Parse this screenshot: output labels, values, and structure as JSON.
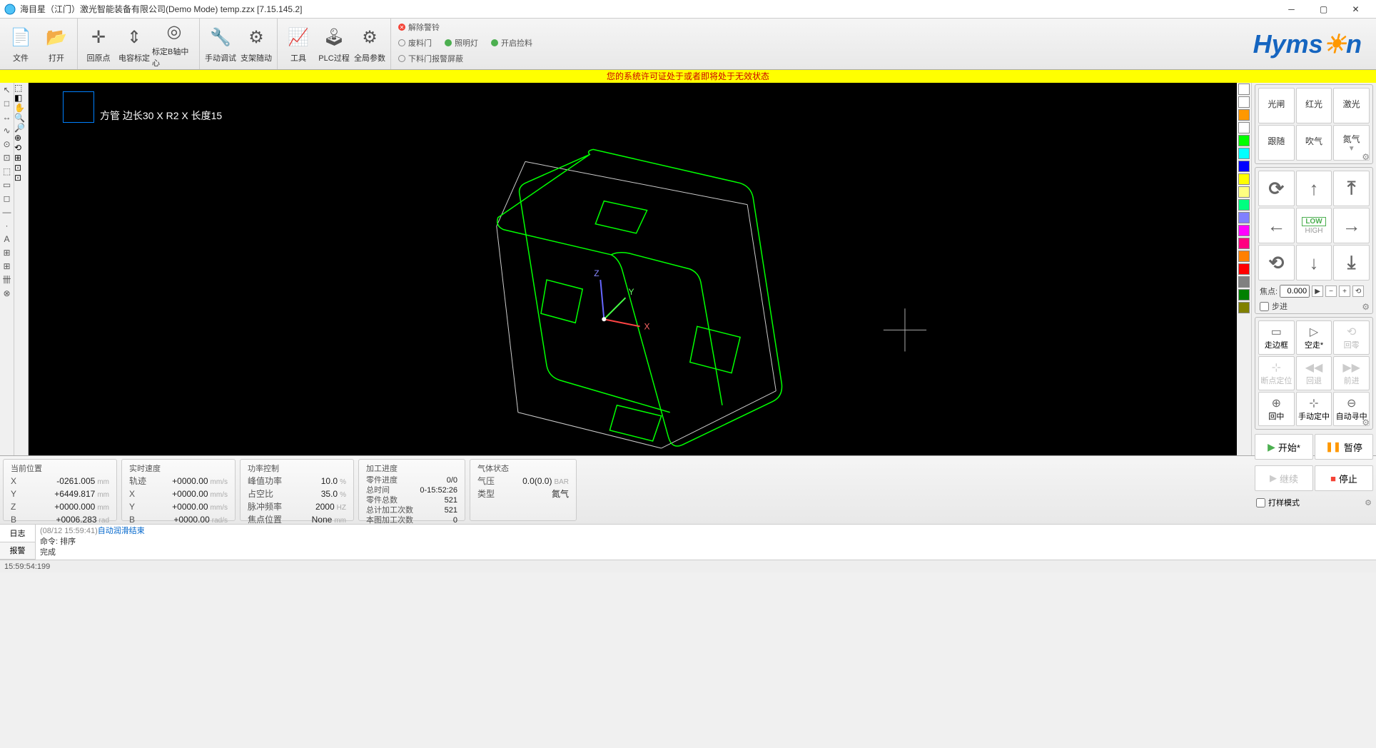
{
  "window": {
    "title": "海目星（江门）激光智能装备有限公司(Demo Mode) temp.zzx   [7.15.145.2]"
  },
  "toolbar": {
    "file": "文件",
    "open": "打开",
    "origin": "回原点",
    "cap": "电容标定",
    "baxis": "标定B轴中心",
    "manual": "手动调试",
    "support": "支架随动",
    "tool": "工具",
    "plc": "PLC过程",
    "global": "全局参数"
  },
  "checks": {
    "alarm": "解除警铃",
    "waste": "废料门",
    "light": "照明灯",
    "autoload": "开启捡料",
    "unload": "下料门报警屏蔽"
  },
  "warn": "您的系统许可证处于或者即将处于无效状态",
  "canvas": {
    "label": "方管 边长30 X R2 X 长度15"
  },
  "rpanel": {
    "r1": {
      "a": "光闸",
      "b": "红光",
      "c": "激光"
    },
    "r2": {
      "a": "跟随",
      "b": "吹气",
      "c": "氮气"
    },
    "focus_lbl": "焦点:",
    "focus_val": "0.000",
    "step_lbl": "步进",
    "low": "LOW",
    "high": "HIGH",
    "frame": "走边框",
    "dry": "空走*",
    "zero": "回零",
    "bpt": "断点定位",
    "back": "回退",
    "fwd": "前进",
    "center": "回中",
    "mcenter": "手动定中",
    "acenter": "自动寻中",
    "start": "开始*",
    "pause": "暂停",
    "cont": "继续",
    "stop": "停止",
    "sample": "打样模式"
  },
  "status": {
    "pos": {
      "hdr": "当前位置",
      "x_k": "X",
      "x_v": "-0261.005",
      "x_u": "mm",
      "y_k": "Y",
      "y_v": "+6449.817",
      "y_u": "mm",
      "z_k": "Z",
      "z_v": "+0000.000",
      "z_u": "mm",
      "b_k": "B",
      "b_v": "+0006.283",
      "b_u": "rad"
    },
    "spd": {
      "hdr": "实时速度",
      "t_k": "轨迹",
      "t_v": "+0000.00",
      "t_u": "mm/s",
      "x_k": "X",
      "x_v": "+0000.00",
      "x_u": "mm/s",
      "y_k": "Y",
      "y_v": "+0000.00",
      "y_u": "mm/s",
      "b_k": "B",
      "b_v": "+0000.00",
      "b_u": "rad/s"
    },
    "pwr": {
      "hdr": "功率控制",
      "p_k": "峰值功率",
      "p_v": "10.0",
      "p_u": "%",
      "d_k": "占空比",
      "d_v": "35.0",
      "d_u": "%",
      "f_k": "脉冲频率",
      "f_v": "2000",
      "f_u": "HZ",
      "fc_k": "焦点位置",
      "fc_v": "None",
      "fc_u": "mm"
    },
    "prog": {
      "hdr": "加工进度",
      "a_k": "零件进度",
      "a_v": "0/0",
      "b_k": "总时间",
      "b_v": "0-15:52:26",
      "c_k": "零件总数",
      "c_v": "521",
      "d_k": "总计加工次数",
      "d_v": "521",
      "e_k": "本图加工次数",
      "e_v": "0"
    },
    "gas": {
      "hdr": "气体状态",
      "p_k": "气压",
      "p_v": "0.0(0.0)",
      "p_u": "BAR",
      "t_k": "类型",
      "t_v": "氮气"
    }
  },
  "log": {
    "tab1": "日志",
    "tab2": "报警",
    "l1_ts": "(08/12 15:59:41)",
    "l1_msg": "自动润滑结束",
    "l2_k": "命令:",
    "l2_v": "排序",
    "l3": "完成"
  },
  "footer": {
    "time": "15:59:54:199"
  },
  "left_tools_a": [
    "↖",
    "□",
    "↔",
    "∿",
    "⊙",
    "⊡",
    "⬚",
    "▭",
    "◻",
    "—",
    "·",
    "A",
    "⊞",
    "⊞",
    "卌",
    "⊗"
  ],
  "left_tools_b": [
    "⬚",
    "◧",
    "✋",
    "🔍",
    "🔎",
    "⊕",
    "⟲",
    "⊞",
    "⊡",
    "⊡"
  ],
  "colors": [
    "#ffffff",
    "#ffffff",
    "#ff9800",
    "#ffffff",
    "#00ff00",
    "#00ffff",
    "#0000ff",
    "#ffff00",
    "#ffff80",
    "#00ff80",
    "#8080ff",
    "#ff00ff",
    "#ff0080",
    "#ff8000",
    "#ff0000",
    "#808080",
    "#008000",
    "#808000"
  ]
}
